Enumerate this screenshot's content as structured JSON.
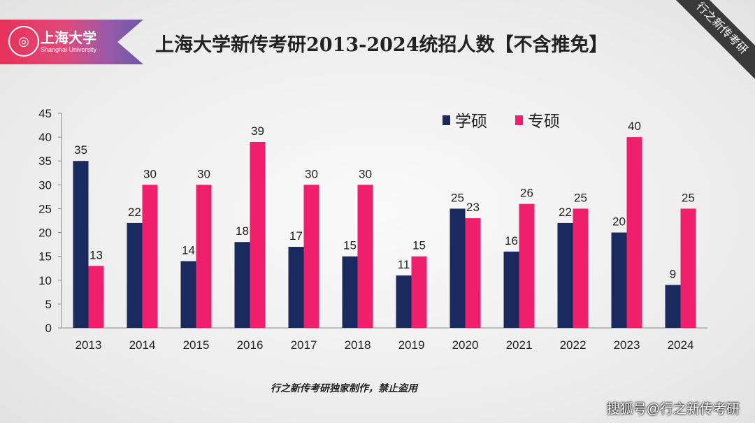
{
  "header": {
    "logo_cn": "上海大学",
    "logo_en": "Shanghai University",
    "title": "上海大学新传考研2013-2024统招人数【不含推免】",
    "corner_ribbon": "行之新传考研"
  },
  "footer": {
    "note": "行之新传考研独家制作，禁止盗用",
    "source": "搜狐号@行之新传考研"
  },
  "chart_data": {
    "type": "bar",
    "categories": [
      "2013",
      "2014",
      "2015",
      "2016",
      "2017",
      "2018",
      "2019",
      "2020",
      "2021",
      "2022",
      "2023",
      "2024"
    ],
    "series": [
      {
        "name": "学硕",
        "color": "#1b2a5e",
        "values": [
          35,
          22,
          14,
          18,
          17,
          15,
          11,
          25,
          16,
          22,
          20,
          9
        ]
      },
      {
        "name": "专硕",
        "color": "#ef1f6b",
        "values": [
          13,
          30,
          30,
          39,
          30,
          30,
          15,
          23,
          26,
          25,
          40,
          25
        ]
      }
    ],
    "ylim": [
      0,
      45
    ],
    "yticks": [
      0,
      5,
      10,
      15,
      20,
      25,
      30,
      35,
      40,
      45
    ],
    "grid": false,
    "legend": "top-right",
    "data_labels": true
  }
}
